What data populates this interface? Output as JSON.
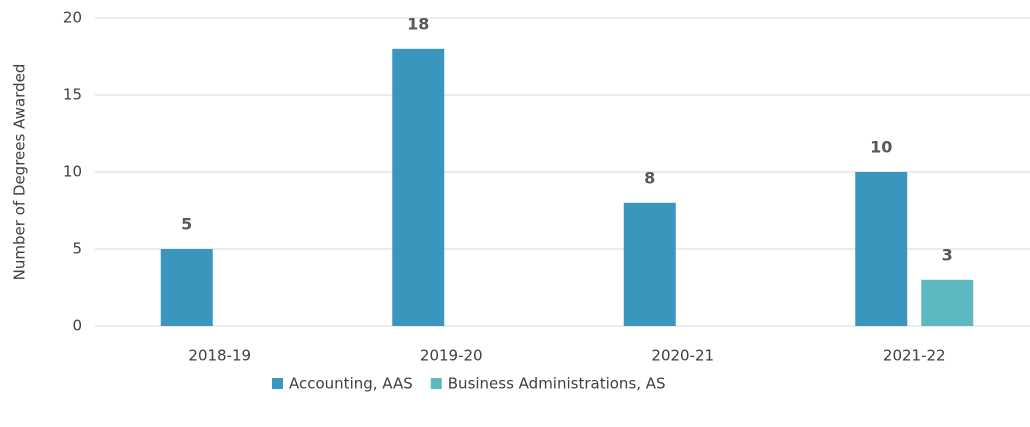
{
  "chart_data": {
    "type": "bar",
    "y_label": "Number of Degrees Awarded",
    "categories": [
      "2018-19",
      "2019-20",
      "2020-21",
      "2021-22"
    ],
    "series": [
      {
        "name": "Accounting, AAS",
        "color": "#3a96bd",
        "values": [
          5,
          18,
          8,
          10
        ]
      },
      {
        "name": "Business Administrations, AS",
        "color": "#5cb9c2",
        "values": [
          null,
          null,
          null,
          3
        ]
      }
    ],
    "ylim": [
      0,
      20
    ],
    "yticks": [
      0,
      5,
      10,
      15,
      20
    ],
    "grid": true,
    "legend": "bottom"
  }
}
